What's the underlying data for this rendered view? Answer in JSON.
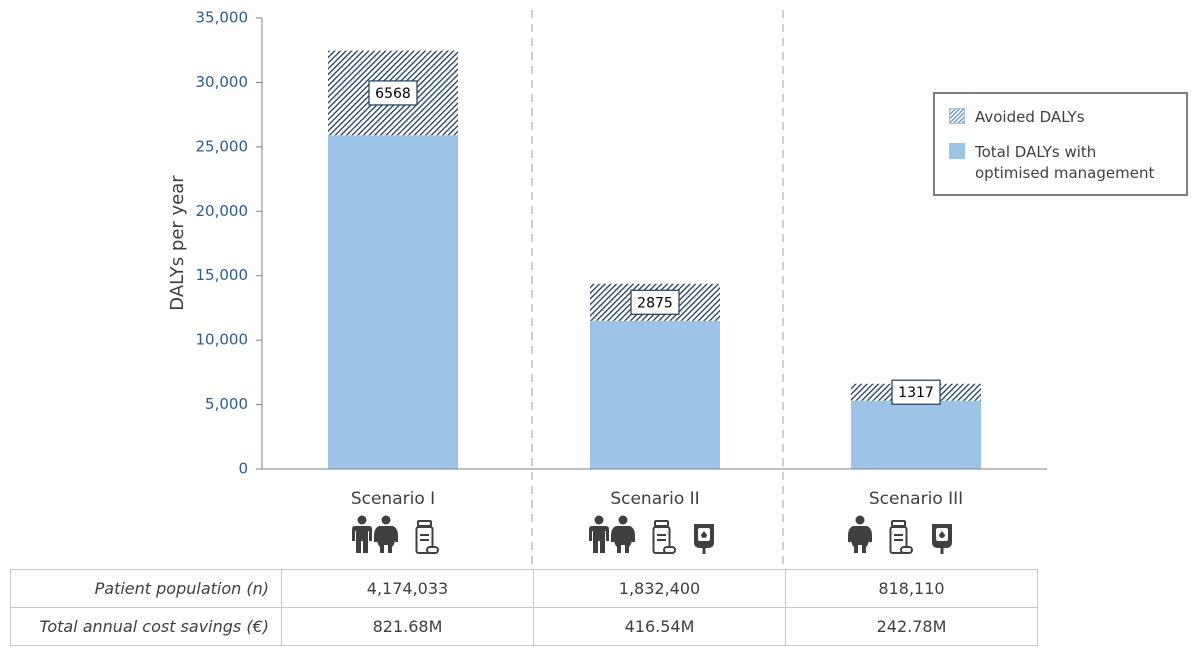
{
  "chart_data": {
    "type": "stacked-bar",
    "y_label": "DALYs per year",
    "categories": [
      "Scenario I",
      "Scenario II",
      "Scenario III"
    ],
    "series": [
      {
        "name": "Total DALYs with optimised management",
        "color": "#9dc3e6",
        "values": [
          25900,
          11500,
          5300
        ]
      },
      {
        "name": "Avoided DALYs",
        "color": "#1f3b5a",
        "pattern": "hatch",
        "values": [
          6568,
          2875,
          1317
        ]
      }
    ],
    "value_label_series": 1,
    "ylim": [
      0,
      35000
    ],
    "yticks": [
      0,
      {
        "value": 5000,
        "label": "5,000"
      },
      {
        "value": 10000,
        "label": "10,000"
      },
      {
        "value": 15000,
        "label": "15,000"
      },
      {
        "value": 20000,
        "label": "20,000"
      },
      {
        "value": 25000,
        "label": "25,000"
      },
      {
        "value": 30000,
        "label": "30,000"
      },
      {
        "value": 35000,
        "label": "35,000"
      }
    ],
    "legend_position": "upper right"
  },
  "table": {
    "rows": [
      {
        "label": "Patient population (n)",
        "cells": [
          "4,174,033",
          "1,832,400",
          "818,110"
        ]
      },
      {
        "label": "Total annual cost savings (€)",
        "cells": [
          "821.68M",
          "416.54M",
          "242.78M"
        ]
      }
    ]
  }
}
